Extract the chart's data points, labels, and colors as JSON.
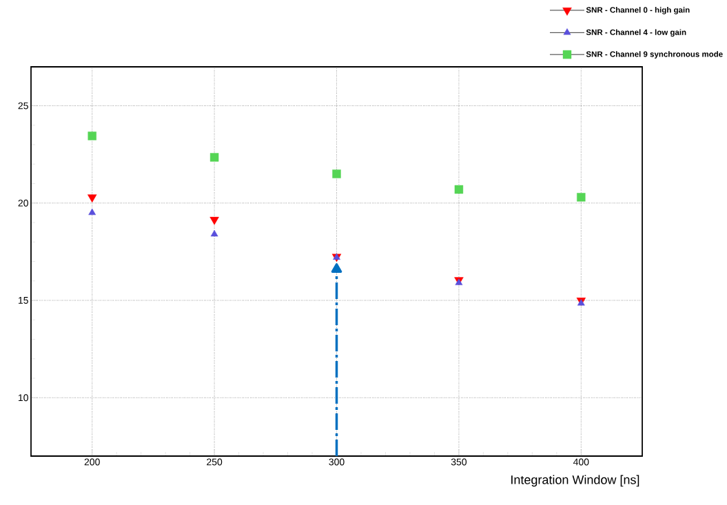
{
  "chart_data": {
    "type": "scatter",
    "xlabel": "Integration Window [ns]",
    "x": [
      200,
      250,
      300,
      350,
      400
    ],
    "series": [
      {
        "name": "SNR - Channel 0 - high gain",
        "color": "#ff0000",
        "marker": "triangle-down",
        "values": [
          20.3,
          19.15,
          17.25,
          16.05,
          15.0
        ]
      },
      {
        "name": "SNR - Channel 4 - low gain",
        "color": "#5a50dc",
        "marker": "triangle",
        "values": [
          19.5,
          18.4,
          17.2,
          15.9,
          14.85
        ]
      },
      {
        "name": "SNR - Channel 9 synchronous mode",
        "color": "#55d555",
        "marker": "square",
        "values": [
          23.45,
          22.35,
          21.5,
          20.7,
          20.3
        ]
      },
      {
        "type": "line",
        "color": "#0070c0",
        "marker": "triangle",
        "line_style": "dashdot",
        "x": [
          300,
          300
        ],
        "values": [
          7,
          16.6
        ]
      }
    ],
    "xlim": [
      175,
      425
    ],
    "ylim": [
      7,
      27
    ],
    "xticks": [
      200,
      250,
      300,
      350,
      400
    ],
    "yticks": [
      10,
      15,
      20,
      25
    ],
    "grid": true,
    "legend": "top right"
  }
}
